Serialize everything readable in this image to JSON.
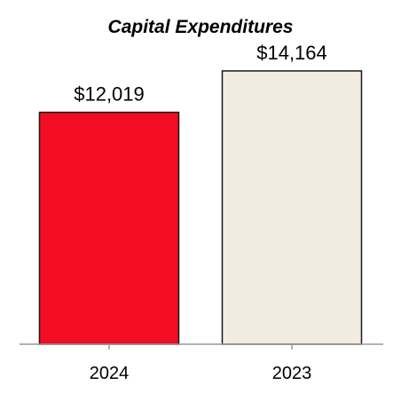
{
  "chart_data": {
    "type": "bar",
    "title": "Capital Expenditures",
    "categories": [
      "2024",
      "2023"
    ],
    "values": [
      12019,
      14164
    ],
    "data_labels": [
      "$12,019",
      "$14,164"
    ],
    "colors": [
      "#f20c24",
      "#f2ece0"
    ],
    "edge_color": "#1a1a1a",
    "axis_color": "#9a9a9a",
    "xlabel": "",
    "ylabel": "",
    "ylim": [
      0,
      16000
    ],
    "grid": false,
    "legend": "none"
  }
}
